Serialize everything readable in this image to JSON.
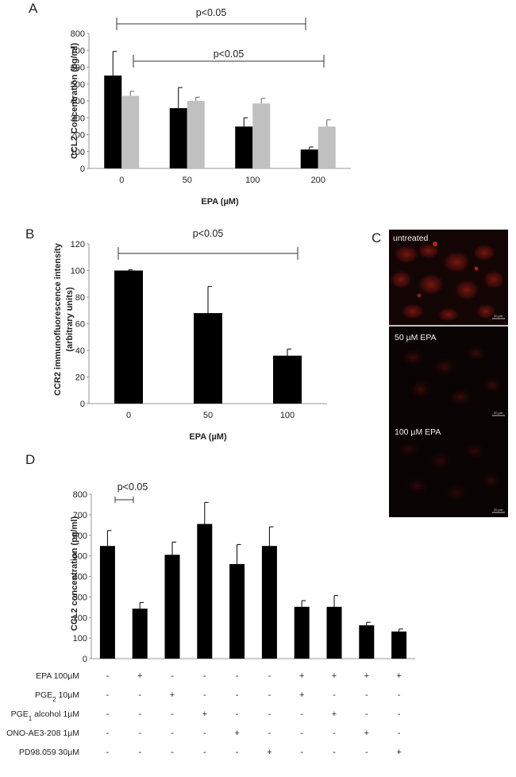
{
  "chart_data": [
    {
      "panel": "A",
      "type": "bar",
      "ylabel": "CCL2 Concentration (pg/ml)",
      "xlabel": "EPA (µM)",
      "categories": [
        "0",
        "50",
        "100",
        "200"
      ],
      "ylim": [
        0,
        800
      ],
      "yticks": [
        "0",
        "100",
        "200",
        "300",
        "400",
        "500",
        "600",
        "700",
        "800"
      ],
      "series": [
        {
          "color": "#000000",
          "values": [
            550,
            357,
            248,
            112
          ],
          "errors": [
            143,
            122,
            52,
            15
          ]
        },
        {
          "color": "#c0c0c0",
          "values": [
            430,
            400,
            385,
            248
          ],
          "errors": [
            27,
            22,
            30,
            40
          ]
        }
      ],
      "significance": [
        {
          "text": "p<0.05",
          "from": "0",
          "to": "200"
        },
        {
          "text": "p<0.05",
          "from": "0",
          "to": "200"
        }
      ]
    },
    {
      "panel": "B",
      "type": "bar",
      "ylabel_lines": [
        "CCR2 immunofluorescence intensity",
        "(arbitrary units)"
      ],
      "xlabel": "EPA (µM)",
      "categories": [
        "0",
        "50",
        "100"
      ],
      "ylim": [
        0,
        120
      ],
      "yticks": [
        "0",
        "20",
        "40",
        "60",
        "80",
        "100",
        "120"
      ],
      "series": [
        {
          "color": "#000000",
          "values": [
            100,
            68,
            36
          ],
          "errors": [
            0.5,
            20,
            5
          ]
        }
      ],
      "significance": [
        {
          "text": "p<0.05",
          "from": "0",
          "to": "100"
        }
      ]
    },
    {
      "panel": "D",
      "type": "bar",
      "ylabel": "CCL2 concentration (pg/ml)",
      "ylim": [
        0,
        800
      ],
      "yticks": [
        "0",
        "100",
        "200",
        "300",
        "400",
        "500",
        "600",
        "700",
        "800"
      ],
      "series": [
        {
          "color": "#000000",
          "values": [
            548,
            243,
            505,
            655,
            460,
            548,
            252,
            252,
            162,
            132
          ],
          "errors": [
            75,
            30,
            62,
            105,
            95,
            93,
            30,
            55,
            15,
            12
          ]
        }
      ],
      "significance": [
        {
          "text": "p<0.05",
          "from": 1,
          "to": 2
        }
      ],
      "treatments": [
        {
          "label": "EPA 100µM",
          "signs": [
            "-",
            "+",
            "-",
            "-",
            "-",
            "-",
            "+",
            "+",
            "+",
            "+"
          ]
        },
        {
          "label_main": "PGE",
          "label_sub": "2",
          "label_rest": " 10µM",
          "signs": [
            "-",
            "-",
            "+",
            "-",
            "-",
            "-",
            "+",
            "-",
            "-",
            "-"
          ]
        },
        {
          "label_main": "PGE",
          "label_sub": "1",
          "label_rest": " alcohol 1µM",
          "signs": [
            "-",
            "-",
            "-",
            "+",
            "-",
            "-",
            "-",
            "+",
            "-",
            "-"
          ]
        },
        {
          "label": "ONO-AE3-208 1µM",
          "signs": [
            "-",
            "-",
            "-",
            "-",
            "+",
            "-",
            "-",
            "-",
            "+",
            "-"
          ]
        },
        {
          "label": "PD98.059 30µM",
          "signs": [
            "-",
            "-",
            "-",
            "-",
            "-",
            "+",
            "-",
            "-",
            "-",
            "+"
          ]
        }
      ]
    }
  ],
  "panels": {
    "a": "A",
    "b": "B",
    "c": "C",
    "d": "D"
  },
  "micrographs": [
    {
      "label": "untreated",
      "scale": "20 µm"
    },
    {
      "label": "50 µM EPA",
      "scale": "20 µm"
    },
    {
      "label": "100 µM EPA",
      "scale": "20 µm"
    }
  ]
}
